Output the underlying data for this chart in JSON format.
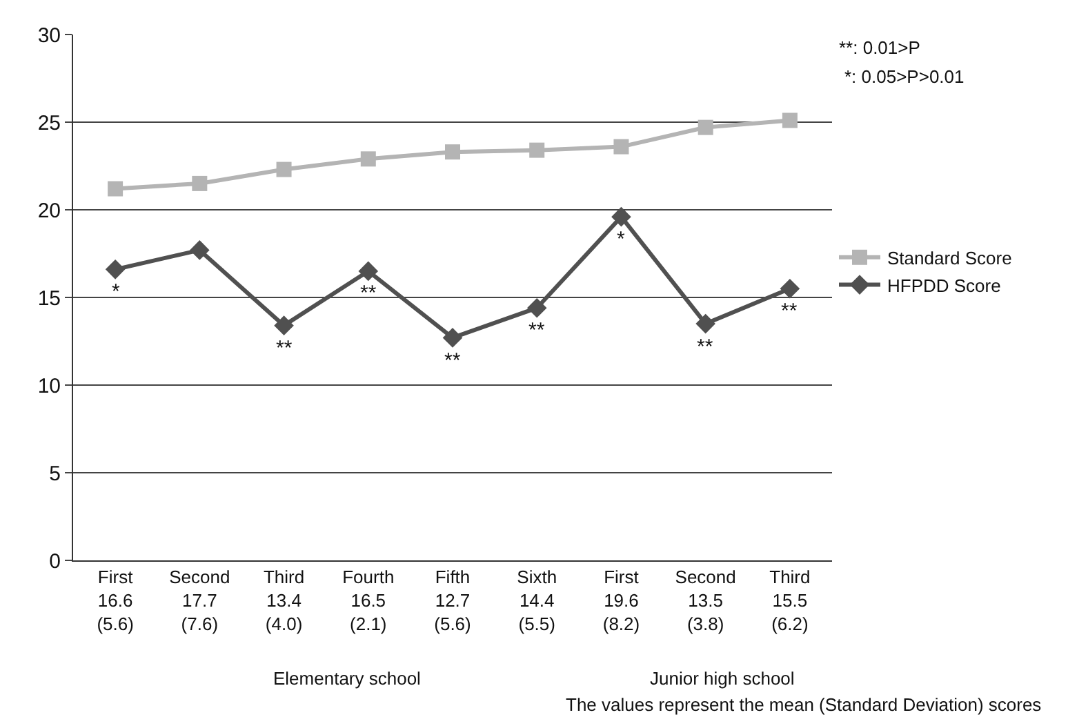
{
  "chart_data": {
    "type": "line",
    "categories": [
      "First\n16.6\n(5.6)",
      "Second\n17.7\n(7.6)",
      "Third\n13.4\n(4.0)",
      "Fourth\n16.5\n(2.1)",
      "Fifth\n12.7\n(5.6)",
      "Sixth\n14.4\n(5.5)",
      "First\n19.6\n(8.2)",
      "Second\n13.5\n(3.8)",
      "Third\n15.5\n(6.2)"
    ],
    "series": [
      {
        "name": "Standard Score",
        "color": "#b4b4b4",
        "marker": "square",
        "values": [
          21.2,
          21.5,
          22.3,
          22.9,
          23.3,
          23.4,
          23.6,
          24.7,
          25.1
        ]
      },
      {
        "name": "HFPDD Score",
        "color": "#505050",
        "marker": "diamond",
        "values": [
          16.6,
          17.7,
          13.4,
          16.5,
          12.7,
          14.4,
          19.6,
          13.5,
          15.5
        ]
      }
    ],
    "ylim": [
      0,
      30
    ],
    "yticks": [
      0,
      5,
      10,
      15,
      20,
      25,
      30
    ],
    "grid": "y",
    "legend": "right",
    "annotations": [
      {
        "text": "*",
        "x": "First\n16.6\n(5.6)",
        "y": 16.6
      },
      {
        "text": "**",
        "x": "Third\n13.4\n(4.0)",
        "y": 13.4
      },
      {
        "text": "**",
        "x": "Fourth\n16.5\n(2.1)",
        "y": 16.5
      },
      {
        "text": "**",
        "x": "Fifth\n12.7\n(5.6)",
        "y": 12.7
      },
      {
        "text": "**",
        "x": "Sixth\n14.4\n(5.5)",
        "y": 14.4
      },
      {
        "text": "*",
        "x": "First\n19.6\n(8.2)",
        "y": 19.6
      },
      {
        "text": "**",
        "x": "Second\n13.5\n(3.8)",
        "y": 13.5
      },
      {
        "text": "**",
        "x": "Third\n15.5\n(6.2)",
        "y": 15.5
      },
      "**: 0.01>P",
      "*: 0.05>P>0.01",
      "Elementary school",
      "Junior high school",
      "The values represent the mean (Standard Deviation) scores"
    ]
  }
}
